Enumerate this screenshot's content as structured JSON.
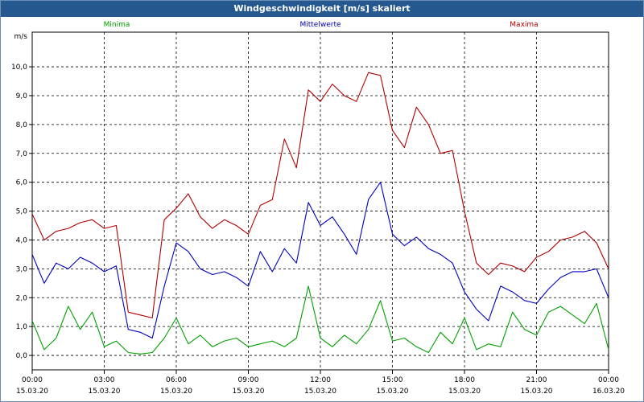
{
  "window": {
    "title": "Windgeschwindigkeit [m/s] skaliert"
  },
  "chart_data": {
    "type": "line",
    "title": "Windgeschwindigkeit [m/s] skaliert",
    "ylabel": "m/s",
    "ylim": [
      -0.5,
      11.2
    ],
    "yticks": [
      "0,0",
      "1,0",
      "2,0",
      "3,0",
      "4,0",
      "5,0",
      "6,0",
      "7,0",
      "8,0",
      "9,0",
      "10,0"
    ],
    "xlim": [
      0,
      24
    ],
    "xticks": [
      {
        "time": "00:00",
        "date": "15.03.20"
      },
      {
        "time": "03:00",
        "date": "15.03.20"
      },
      {
        "time": "06:00",
        "date": "15.03.20"
      },
      {
        "time": "09:00",
        "date": "15.03.20"
      },
      {
        "time": "12:00",
        "date": "15.03.20"
      },
      {
        "time": "15:00",
        "date": "15.03.20"
      },
      {
        "time": "18:00",
        "date": "15.03.20"
      },
      {
        "time": "21:00",
        "date": "15.03.20"
      },
      {
        "time": "00:00",
        "date": "16.03.20"
      }
    ],
    "grid": true,
    "series": [
      {
        "name": "Minima",
        "color": "#00a000",
        "x": [
          0,
          0.5,
          1,
          1.5,
          2,
          2.5,
          3,
          3.5,
          4,
          4.5,
          5,
          5.5,
          6,
          6.5,
          7,
          7.5,
          8,
          8.5,
          9,
          9.5,
          10,
          10.5,
          11,
          11.5,
          12,
          12.5,
          13,
          13.5,
          14,
          14.5,
          15,
          15.5,
          16,
          16.5,
          17,
          17.5,
          18,
          18.5,
          19,
          19.5,
          20,
          20.5,
          21,
          21.5,
          22,
          22.5,
          23,
          23.5,
          24
        ],
        "values": [
          1.2,
          0.2,
          0.6,
          1.7,
          0.9,
          1.5,
          0.3,
          0.5,
          0.1,
          0.05,
          0.1,
          0.6,
          1.3,
          0.4,
          0.7,
          0.3,
          0.5,
          0.6,
          0.3,
          0.4,
          0.5,
          0.3,
          0.6,
          2.4,
          0.6,
          0.3,
          0.7,
          0.4,
          0.9,
          1.9,
          0.5,
          0.6,
          0.3,
          0.1,
          0.8,
          0.4,
          1.3,
          0.2,
          0.4,
          0.3,
          1.5,
          0.9,
          0.7,
          1.5,
          1.7,
          1.4,
          1.1,
          1.8,
          0.2
        ]
      },
      {
        "name": "Mittelwerte",
        "color": "#0000c0",
        "x": [
          0,
          0.5,
          1,
          1.5,
          2,
          2.5,
          3,
          3.5,
          4,
          4.5,
          5,
          5.5,
          6,
          6.5,
          7,
          7.5,
          8,
          8.5,
          9,
          9.5,
          10,
          10.5,
          11,
          11.5,
          12,
          12.5,
          13,
          13.5,
          14,
          14.5,
          15,
          15.5,
          16,
          16.5,
          17,
          17.5,
          18,
          18.5,
          19,
          19.5,
          20,
          20.5,
          21,
          21.5,
          22,
          22.5,
          23,
          23.5,
          24
        ],
        "values": [
          3.5,
          2.5,
          3.2,
          3.0,
          3.4,
          3.2,
          2.9,
          3.1,
          0.9,
          0.8,
          0.6,
          2.4,
          3.9,
          3.6,
          3.0,
          2.8,
          2.9,
          2.7,
          2.4,
          3.6,
          2.9,
          3.7,
          3.2,
          5.3,
          4.5,
          4.8,
          4.2,
          3.5,
          5.4,
          6.0,
          4.2,
          3.8,
          4.1,
          3.7,
          3.5,
          3.2,
          2.2,
          1.6,
          1.2,
          2.4,
          2.2,
          1.9,
          1.8,
          2.3,
          2.7,
          2.9,
          2.9,
          3.0,
          2.0
        ]
      },
      {
        "name": "Maxima",
        "color": "#b00000",
        "x": [
          0,
          0.5,
          1,
          1.5,
          2,
          2.5,
          3,
          3.5,
          4,
          4.5,
          5,
          5.5,
          6,
          6.5,
          7,
          7.5,
          8,
          8.5,
          9,
          9.5,
          10,
          10.5,
          11,
          11.5,
          12,
          12.5,
          13,
          13.5,
          14,
          14.5,
          15,
          15.5,
          16,
          16.5,
          17,
          17.5,
          18,
          18.5,
          19,
          19.5,
          20,
          20.5,
          21,
          21.5,
          22,
          22.5,
          23,
          23.5,
          24
        ],
        "values": [
          4.9,
          4.0,
          4.3,
          4.4,
          4.6,
          4.7,
          4.4,
          4.5,
          1.5,
          1.4,
          1.3,
          4.7,
          5.1,
          5.6,
          4.8,
          4.4,
          4.7,
          4.5,
          4.2,
          5.2,
          5.4,
          7.5,
          6.5,
          9.2,
          8.8,
          9.4,
          9.0,
          8.8,
          9.8,
          9.7,
          7.8,
          7.2,
          8.6,
          8.0,
          7.0,
          7.1,
          5.0,
          3.2,
          2.8,
          3.2,
          3.1,
          2.9,
          3.4,
          3.6,
          4.0,
          4.1,
          4.3,
          3.9,
          3.0
        ]
      }
    ]
  }
}
